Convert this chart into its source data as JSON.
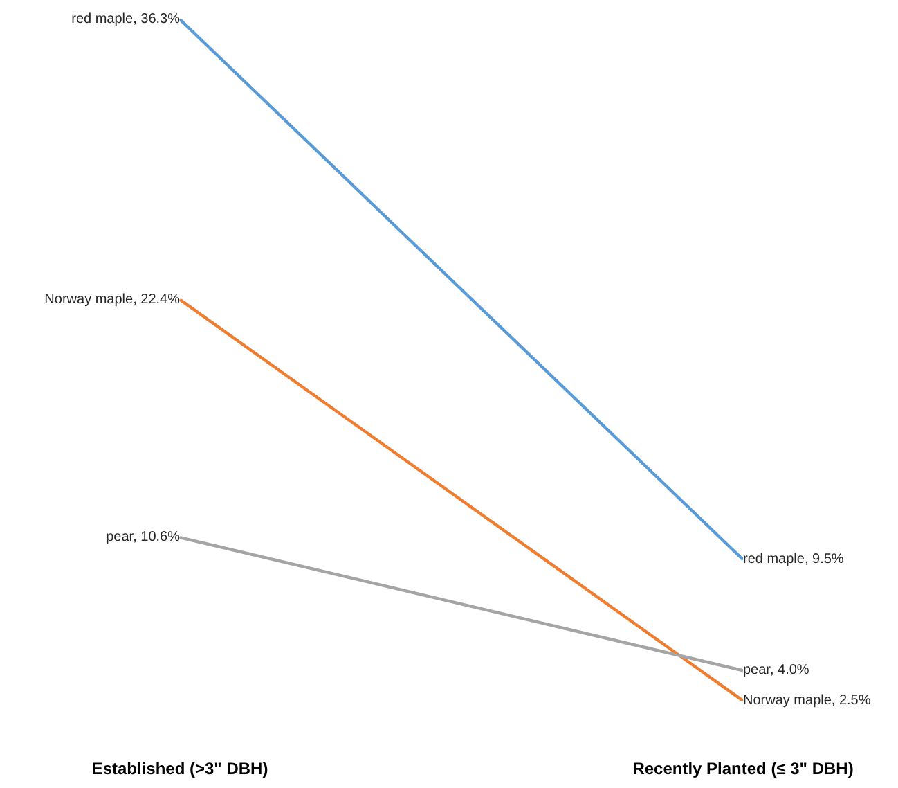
{
  "chart_data": {
    "type": "line",
    "categories": [
      "Established (>3\" DBH)",
      "Recently Planted (≤ 3\" DBH)"
    ],
    "series": [
      {
        "color": "#5b9bd5",
        "values": [
          36.3,
          9.5
        ],
        "value_labels": [
          "red maple, 36.3%",
          "red maple, 9.5%"
        ]
      },
      {
        "color": "#ed7d31",
        "values": [
          22.4,
          2.5
        ],
        "value_labels": [
          "Norway maple, 22.4%",
          "Norway maple, 2.5%"
        ]
      },
      {
        "color": "#a5a5a5",
        "values": [
          10.6,
          4.0
        ],
        "value_labels": [
          "pear, 10.6%",
          "pear, 4.0%"
        ]
      }
    ],
    "marker": "none",
    "line_style": "solid",
    "grid": false,
    "legend": false
  }
}
